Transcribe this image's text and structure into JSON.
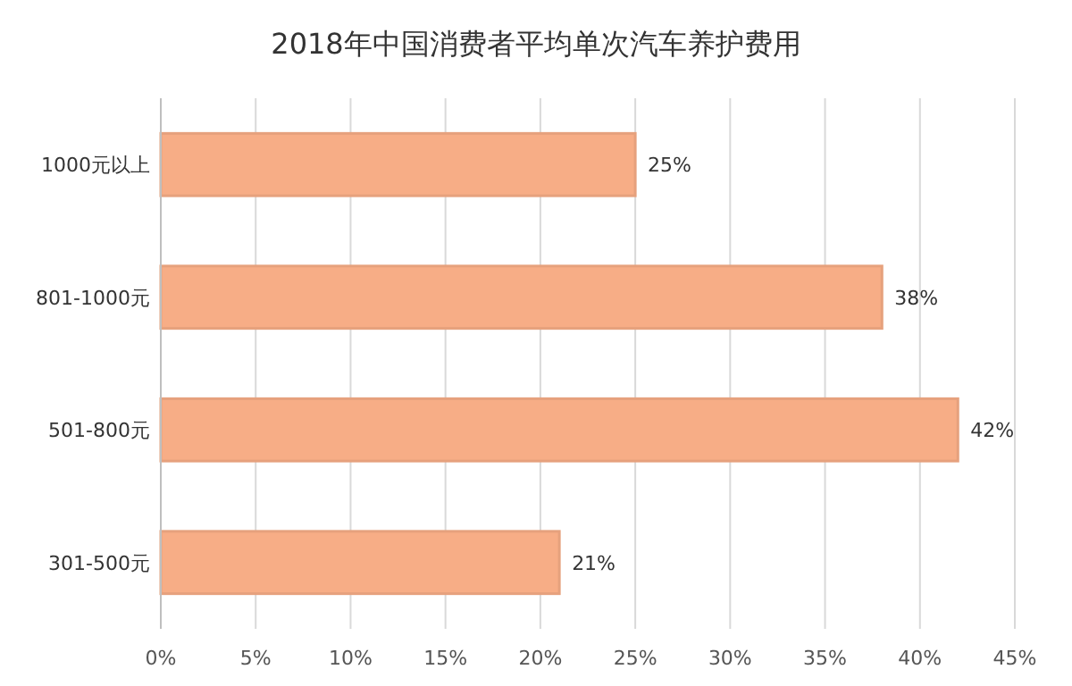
{
  "chart_data": {
    "type": "bar",
    "orientation": "horizontal",
    "title": "2018年中国消费者平均单次汽车养护费用",
    "categories": [
      "1000元以上",
      "801-1000元",
      "501-800元",
      "301-500元"
    ],
    "values": [
      25,
      38,
      42,
      21
    ],
    "value_labels": [
      "25%",
      "38%",
      "42%",
      "21%"
    ],
    "color": "#f7ad86",
    "xlim": [
      0,
      45
    ],
    "xticks": [
      {
        "value": 0,
        "label": "0%"
      },
      {
        "value": 5,
        "label": "5%"
      },
      {
        "value": 10,
        "label": "10%"
      },
      {
        "value": 15,
        "label": "15%"
      },
      {
        "value": 20,
        "label": "20%"
      },
      {
        "value": 25,
        "label": "25%"
      },
      {
        "value": 30,
        "label": "30%"
      },
      {
        "value": 35,
        "label": "35%"
      },
      {
        "value": 40,
        "label": "40%"
      },
      {
        "value": 45,
        "label": "45%"
      }
    ],
    "grid": "x"
  }
}
